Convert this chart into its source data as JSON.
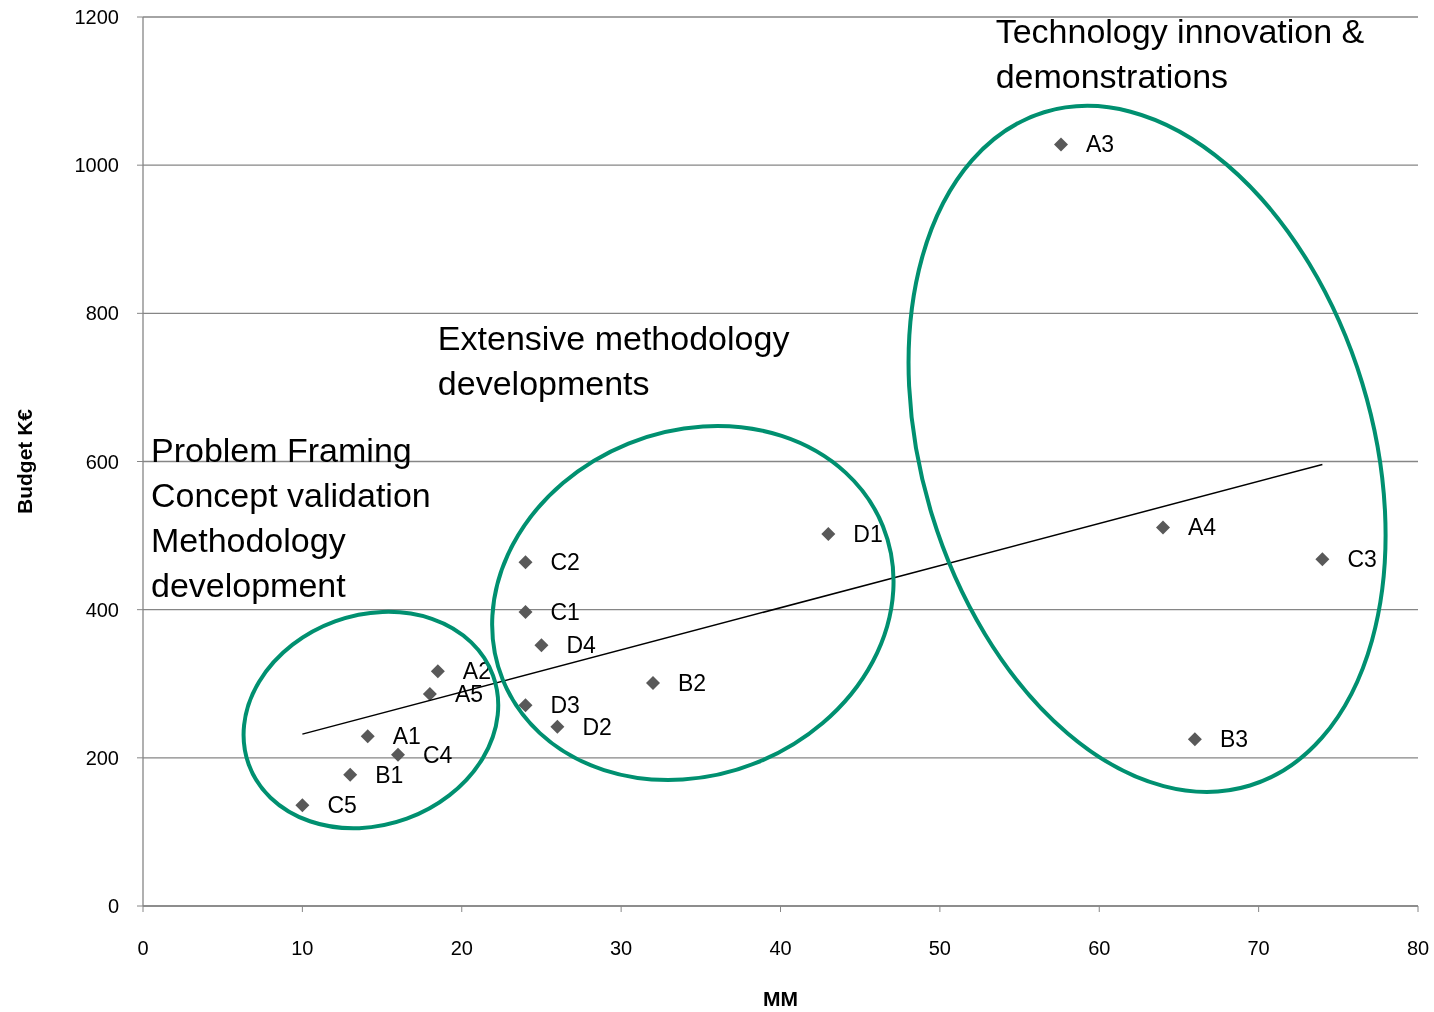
{
  "chart_data": {
    "type": "scatter",
    "xlabel": "MM",
    "ylabel": "Budget K€",
    "xlim": [
      0,
      80
    ],
    "xticks": [
      0,
      10,
      20,
      30,
      40,
      50,
      60,
      70,
      80
    ],
    "ylim": [
      0,
      1200
    ],
    "yticks": [
      0,
      200,
      400,
      600,
      800,
      1000,
      1200
    ],
    "grid": "y",
    "marker": "diamond",
    "series": [
      {
        "color": "#595959",
        "x": [
          10,
          13,
          14.1,
          16,
          18,
          18.5,
          24,
          25,
          24,
          26,
          32,
          43,
          66
        ],
        "values": [
          136,
          177,
          229,
          204,
          286,
          317,
          464,
          352,
          271,
          242,
          301,
          502,
          225
        ],
        "value_labels": [
          "C5",
          "B1",
          "A1",
          "C4",
          "A5",
          "A2",
          "C2",
          "D4",
          "D3",
          "D2",
          "B2",
          "D1",
          "B3"
        ]
      },
      {
        "color": "#595959",
        "x": [
          24,
          57.6,
          64,
          74
        ],
        "values": [
          397,
          1028,
          511,
          468
        ],
        "value_labels": [
          "C1",
          "A3",
          "A4",
          "C3"
        ]
      },
      {
        "type": "line",
        "marker": "none",
        "color": "#000000",
        "x": [
          10,
          74
        ],
        "values": [
          232,
          596
        ]
      }
    ],
    "annotations": [
      "Problem Framing\nConcept validation\nMethodology\ndevelopment",
      "Extensive methodology\ndevelopments",
      "Technology innovation &\ndemonstrations"
    ]
  }
}
